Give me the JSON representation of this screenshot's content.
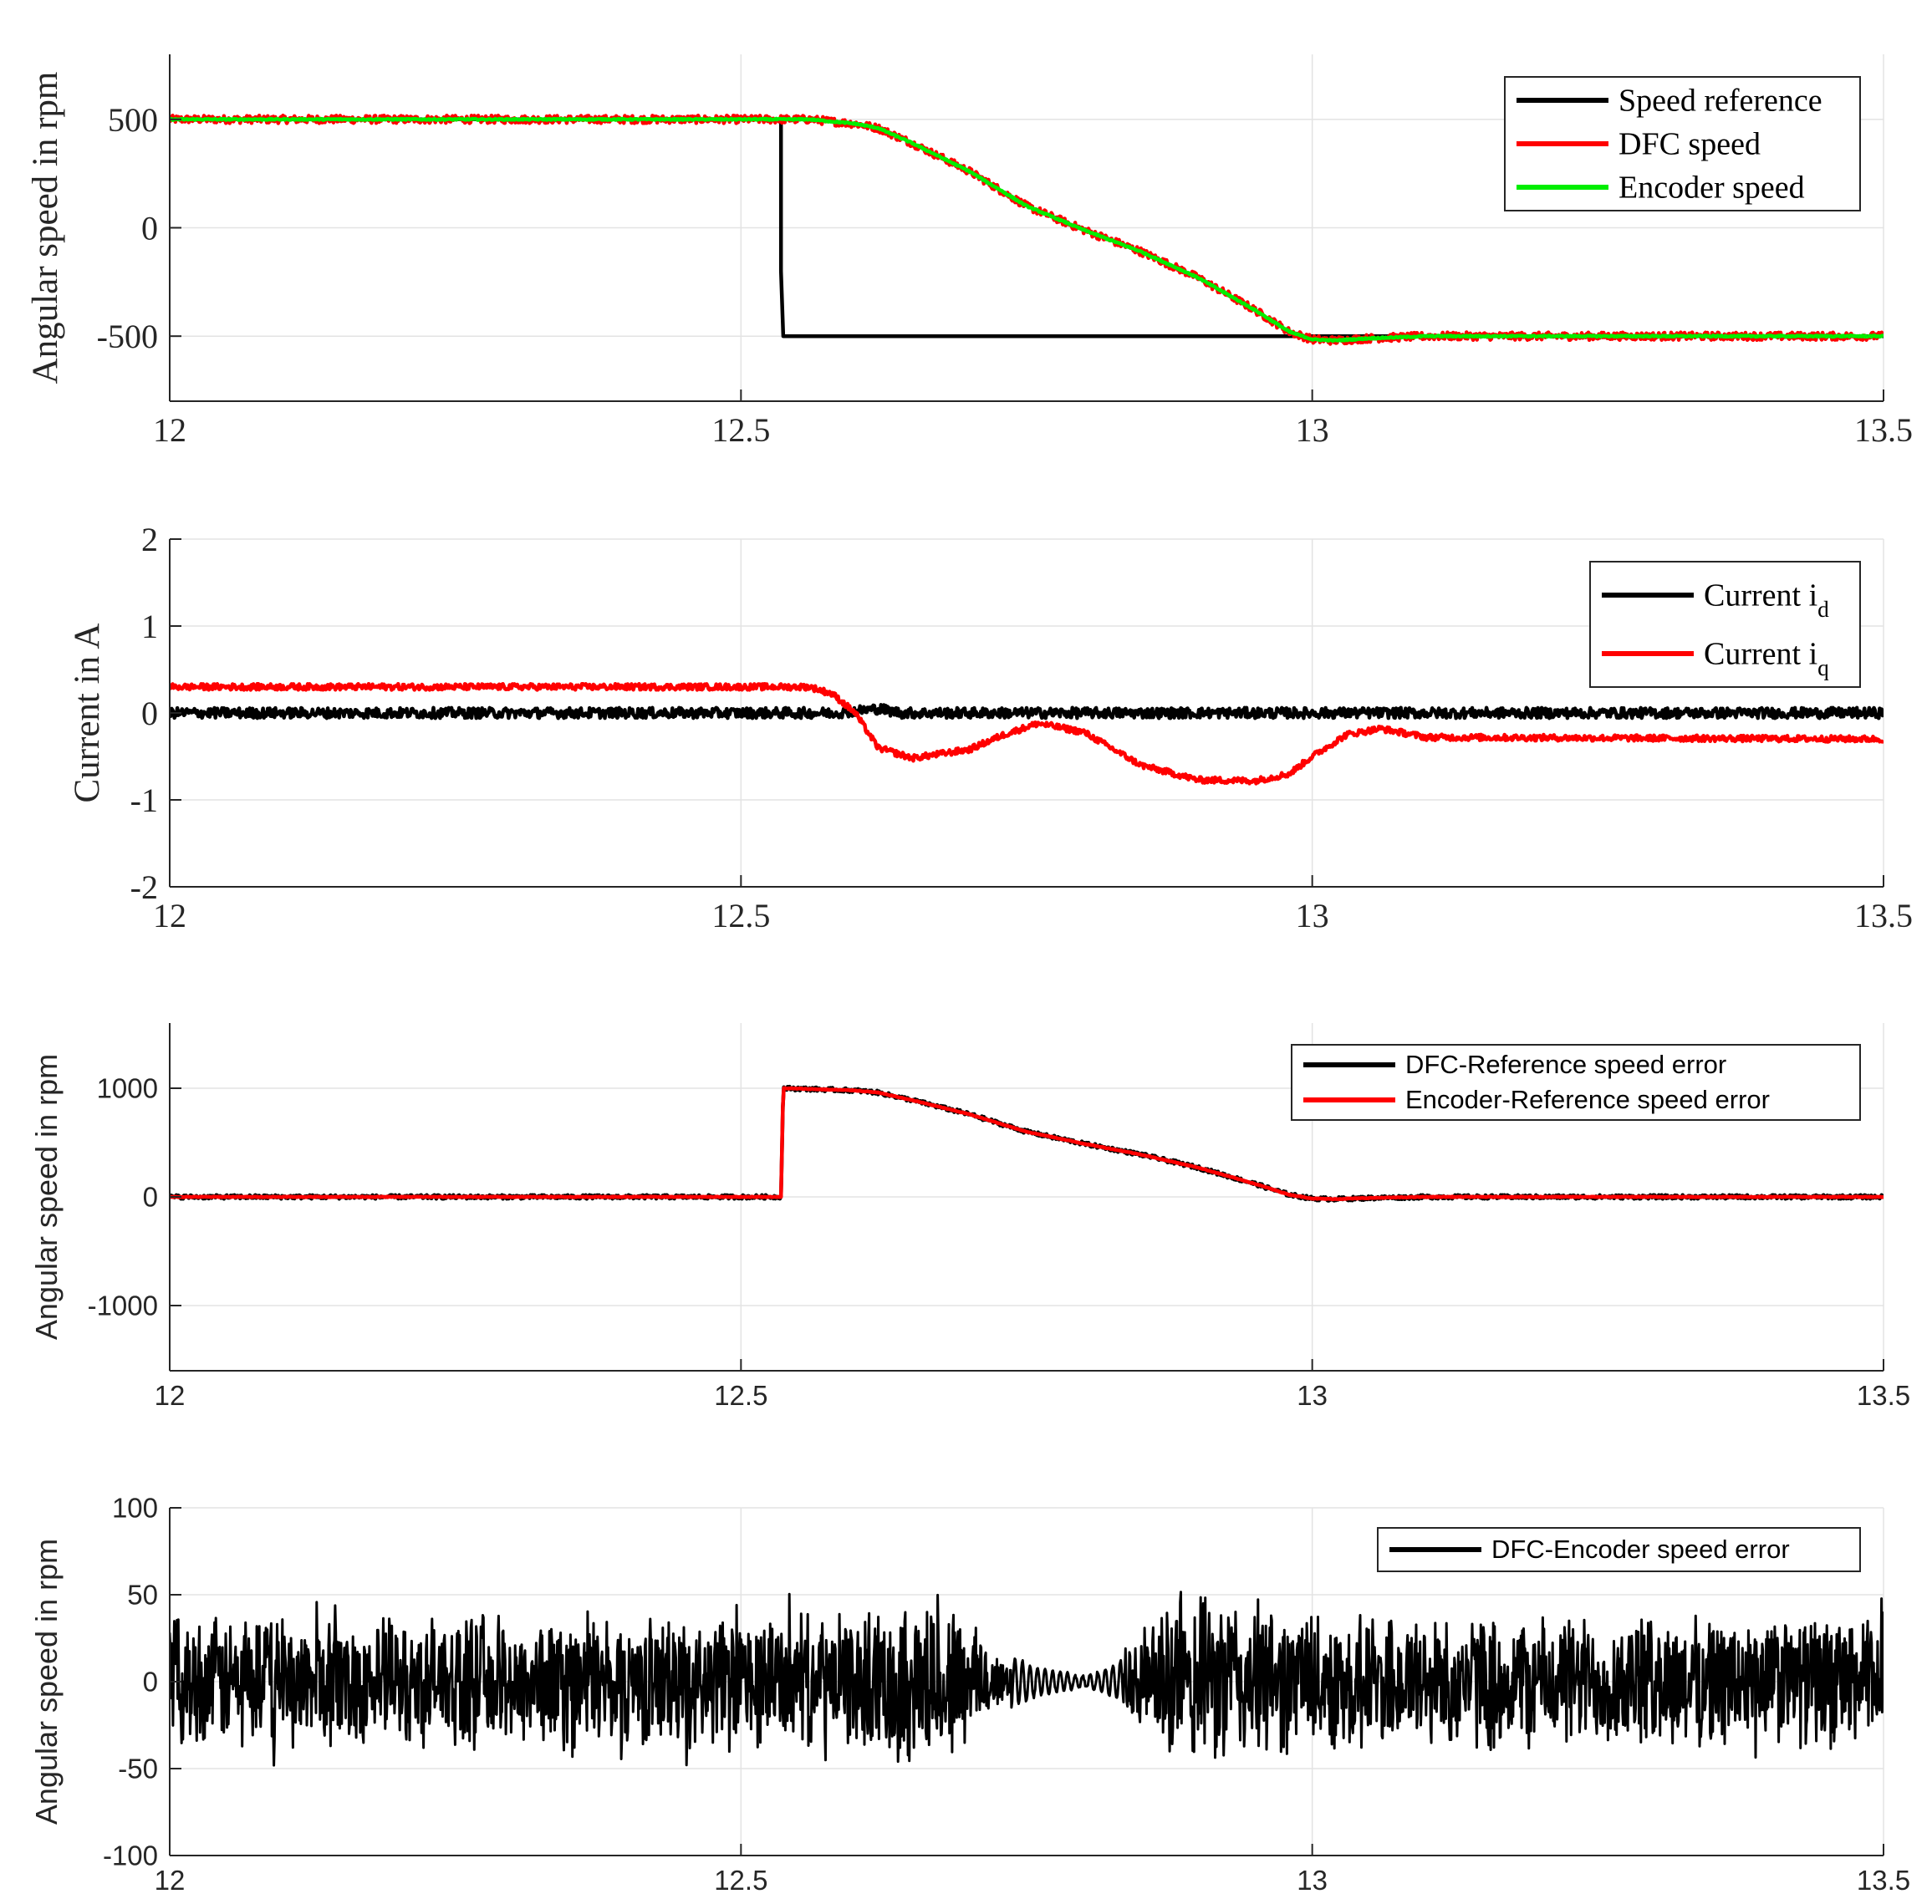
{
  "chart_data": [
    {
      "type": "line",
      "font": "serif",
      "xlim": [
        12,
        13.5
      ],
      "ylim": [
        -800,
        800
      ],
      "xticks": [
        12,
        12.5,
        13,
        13.5
      ],
      "xtick_labels": [
        "12",
        "12.5",
        "13",
        "13.5"
      ],
      "yticks": [
        -500,
        0,
        500
      ],
      "ytick_labels": [
        "-500",
        "0",
        "500"
      ],
      "ylabel": "Angular speed in rpm",
      "grid": true,
      "legend_position": "top-right",
      "series": [
        {
          "name": "Speed reference",
          "color": "#000000",
          "x": [
            12,
            12.535,
            12.535,
            12.537,
            13.5
          ],
          "y": [
            500,
            500,
            -200,
            -500,
            -500
          ],
          "noise": 0
        },
        {
          "name": "DFC speed",
          "color": "#ff0000",
          "x": [
            12,
            12.56,
            12.6,
            12.62,
            12.65,
            12.7,
            12.75,
            12.8,
            12.85,
            12.9,
            12.95,
            12.98,
            13.0,
            13.02,
            13.05,
            13.1,
            13.5
          ],
          "y": [
            500,
            500,
            480,
            460,
            390,
            260,
            100,
            -10,
            -110,
            -230,
            -380,
            -480,
            -515,
            -520,
            -510,
            -500,
            -500
          ],
          "noise": 18
        },
        {
          "name": "Encoder speed",
          "color": "#00ee00",
          "x": [
            12,
            12.56,
            12.6,
            12.62,
            12.65,
            12.7,
            12.75,
            12.8,
            12.85,
            12.9,
            12.95,
            12.98,
            13.0,
            13.02,
            13.05,
            13.1,
            13.5
          ],
          "y": [
            500,
            500,
            480,
            460,
            390,
            260,
            100,
            -10,
            -110,
            -230,
            -380,
            -480,
            -515,
            -520,
            -510,
            -500,
            -500
          ],
          "noise": 3
        }
      ]
    },
    {
      "type": "line",
      "font": "serif",
      "xlim": [
        12,
        13.5
      ],
      "ylim": [
        -2,
        2
      ],
      "xticks": [
        12,
        12.5,
        13,
        13.5
      ],
      "xtick_labels": [
        "12",
        "12.5",
        "13",
        "13.5"
      ],
      "yticks": [
        -2,
        -1,
        0,
        1,
        2
      ],
      "ytick_labels": [
        "-2",
        "-1",
        "0",
        "1",
        "2"
      ],
      "ylabel": "Current in A",
      "grid": true,
      "legend_position": "top-right",
      "series": [
        {
          "name": "Current i",
          "subscript": "d",
          "color": "#000000",
          "x": [
            12,
            12.58,
            12.6,
            12.62,
            12.64,
            12.7,
            12.8,
            12.9,
            13.0,
            13.5
          ],
          "y": [
            0,
            0,
            0.02,
            0.05,
            0,
            0,
            0,
            0,
            0,
            0
          ],
          "noise": 0.06
        },
        {
          "name": "Current i",
          "subscript": "q",
          "color": "#ff0000",
          "x": [
            12,
            12.56,
            12.58,
            12.6,
            12.62,
            12.65,
            12.7,
            12.73,
            12.76,
            12.8,
            12.85,
            12.9,
            12.95,
            12.98,
            13.0,
            13.03,
            13.06,
            13.1,
            13.5
          ],
          "y": [
            0.3,
            0.3,
            0.22,
            0.0,
            -0.4,
            -0.52,
            -0.42,
            -0.25,
            -0.12,
            -0.22,
            -0.6,
            -0.77,
            -0.78,
            -0.7,
            -0.5,
            -0.25,
            -0.18,
            -0.28,
            -0.3
          ],
          "noise": 0.035
        }
      ]
    },
    {
      "type": "line",
      "font": "sans",
      "xlim": [
        12,
        13.5
      ],
      "ylim": [
        -1600,
        1600
      ],
      "xticks": [
        12,
        12.5,
        13,
        13.5
      ],
      "xtick_labels": [
        "12",
        "12.5",
        "13",
        "13.5"
      ],
      "yticks": [
        -1000,
        0,
        1000
      ],
      "ytick_labels": [
        "-1000",
        "0",
        "1000"
      ],
      "ylabel": "Angular speed in rpm",
      "grid": true,
      "legend_position": "top-right",
      "series": [
        {
          "name": "DFC-Reference speed error",
          "color": "#000000",
          "x": [
            12,
            12.535,
            12.537,
            12.6,
            12.62,
            12.65,
            12.7,
            12.75,
            12.8,
            12.85,
            12.9,
            12.95,
            12.98,
            13.0,
            13.02,
            13.05,
            13.1,
            13.5
          ],
          "y": [
            0,
            0,
            1000,
            980,
            960,
            890,
            760,
            600,
            490,
            390,
            270,
            120,
            20,
            -15,
            -20,
            -10,
            0,
            0
          ],
          "noise": 18
        },
        {
          "name": "Encoder-Reference speed error",
          "color": "#ff0000",
          "x": [
            12,
            12.535,
            12.537,
            12.6,
            12.62,
            12.65,
            12.7,
            12.75,
            12.8,
            12.85,
            12.9,
            12.95,
            12.98,
            13.0,
            13.02,
            13.05,
            13.1,
            13.5
          ],
          "y": [
            0,
            0,
            1000,
            980,
            960,
            890,
            760,
            600,
            490,
            390,
            270,
            120,
            20,
            -15,
            -20,
            -10,
            0,
            0
          ],
          "noise": 3
        }
      ]
    },
    {
      "type": "line",
      "font": "sans",
      "xlim": [
        12,
        13.5
      ],
      "ylim": [
        -100,
        100
      ],
      "xticks": [
        12,
        12.5,
        13,
        13.5
      ],
      "xtick_labels": [
        "12",
        "12.5",
        "13",
        "13.5"
      ],
      "yticks": [
        -100,
        -50,
        0,
        50,
        100
      ],
      "ytick_labels": [
        "-100",
        "-50",
        "0",
        "50",
        "100"
      ],
      "ylabel": "Angular speed in rpm",
      "grid": true,
      "legend_position": "top-right",
      "series": [
        {
          "name": "DFC-Encoder speed error",
          "color": "#000000",
          "noise_profile": [
            {
              "x": 12.0,
              "amplitude": 40
            },
            {
              "x": 12.6,
              "amplitude": 40
            },
            {
              "x": 12.65,
              "amplitude": 55
            },
            {
              "x": 12.7,
              "amplitude": 45
            },
            {
              "x": 12.72,
              "amplitude": 20
            },
            {
              "x": 12.76,
              "amplitude": 8
            },
            {
              "x": 12.8,
              "amplitude": 3
            },
            {
              "x": 12.83,
              "amplitude": 10
            },
            {
              "x": 12.85,
              "amplitude": 30
            },
            {
              "x": 12.86,
              "amplitude": 45
            },
            {
              "x": 12.92,
              "amplitude": 55
            },
            {
              "x": 13.0,
              "amplitude": 42
            },
            {
              "x": 13.5,
              "amplitude": 40
            }
          ]
        }
      ]
    }
  ]
}
